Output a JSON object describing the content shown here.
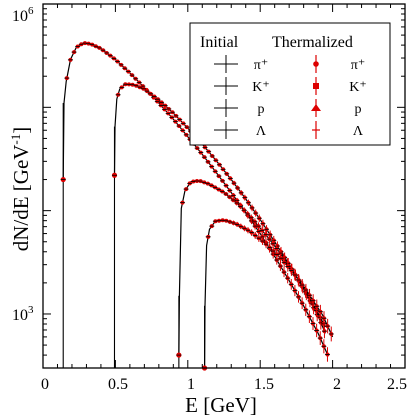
{
  "chart_data": {
    "type": "line",
    "xlabel": "E [GeV]",
    "ylabel_main": "dN/dE [GeV",
    "ylabel_exp": "-1",
    "ylabel_close": "]",
    "xlim": [
      0,
      2.5
    ],
    "ylim": [
      300,
      1000000
    ],
    "y_scale": "log",
    "x_ticks": [
      {
        "value": 0,
        "label": "0"
      },
      {
        "value": 0.5,
        "label": "0.5"
      },
      {
        "value": 1,
        "label": "1"
      },
      {
        "value": 1.5,
        "label": "1.5"
      },
      {
        "value": 2,
        "label": "2"
      },
      {
        "value": 2.5,
        "label": "2.5"
      }
    ],
    "y_ticks": [
      {
        "value": 1000,
        "base": "10",
        "exp": "3"
      },
      {
        "value": 1000000,
        "base": "10",
        "exp": "6"
      }
    ],
    "legend": {
      "placement": "top-right",
      "col1_title": "Initial",
      "col2_title": "Thermalized",
      "entries": [
        "π⁺",
        "K⁺",
        "p",
        "Λ"
      ]
    },
    "colors": {
      "initial": "#000000",
      "thermalized": "#dd0000"
    },
    "series": [
      {
        "name": "π⁺",
        "mass": 0.1396,
        "x": [
          0.1396,
          0.145,
          0.16,
          0.19,
          0.23,
          0.28,
          0.33,
          0.4,
          0.5,
          0.6,
          0.7,
          0.8,
          0.9,
          1.0,
          1.1,
          1.2,
          1.3,
          1.4,
          1.5,
          1.6,
          1.7,
          1.8,
          1.9,
          1.97
        ],
        "y": [
          20000,
          110000,
          178000,
          290000,
          380000,
          420000,
          410000,
          370000,
          290000,
          215000,
          155000,
          110000,
          77000,
          52000,
          35000,
          23000,
          15000,
          9600,
          6000,
          3600,
          2100,
          1200,
          650,
          390
        ]
      },
      {
        "name": "K⁺",
        "mass": 0.4937,
        "x": [
          0.4937,
          0.497,
          0.51,
          0.53,
          0.57,
          0.63,
          0.7,
          0.8,
          0.9,
          1.0,
          1.1,
          1.2,
          1.3,
          1.4,
          1.5,
          1.6,
          1.7,
          1.8,
          1.9,
          1.95
        ],
        "y": [
          22000,
          65000,
          120000,
          150000,
          168000,
          165000,
          150000,
          118000,
          88000,
          63000,
          44000,
          30000,
          20000,
          13000,
          8200,
          5000,
          3000,
          1750,
          950,
          650
        ]
      },
      {
        "name": "p",
        "mass": 0.9383,
        "x": [
          0.9383,
          0.942,
          0.955,
          0.98,
          1.02,
          1.08,
          1.15,
          1.25,
          1.35,
          1.45,
          1.55,
          1.65,
          1.75,
          1.85,
          1.95
        ],
        "y": [
          400,
          1500,
          10500,
          15500,
          19000,
          19500,
          18000,
          15000,
          11500,
          8200,
          5600,
          3700,
          2300,
          1350,
          750
        ]
      },
      {
        "name": "Λ",
        "mass": 1.1157,
        "x": [
          1.1157,
          1.119,
          1.13,
          1.15,
          1.19,
          1.25,
          1.33,
          1.43,
          1.53,
          1.63,
          1.73,
          1.83,
          1.93,
          2.0
        ],
        "y": [
          300,
          1200,
          4600,
          6600,
          7900,
          8100,
          7500,
          6300,
          4900,
          3600,
          2500,
          1600,
          980,
          600
        ]
      }
    ]
  }
}
